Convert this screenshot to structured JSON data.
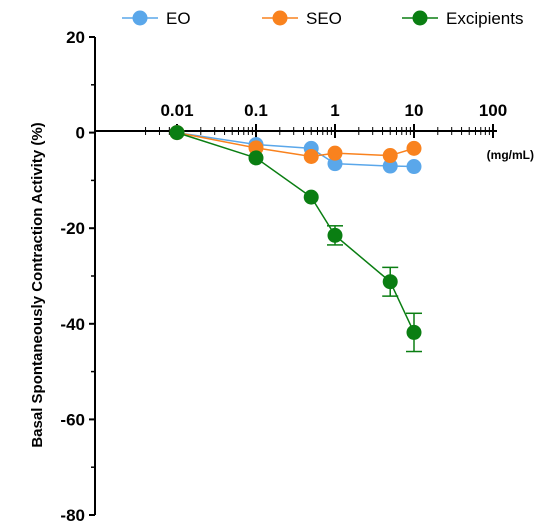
{
  "chart_data": {
    "type": "line",
    "title": "",
    "xlabel": "",
    "x_unit_label": "(mg/mL)",
    "ylabel": "Basal Spontaneously Contraction Activity (%)",
    "x_scale": "log",
    "xlim": [
      0.01,
      100
    ],
    "ylim": [
      -80,
      20
    ],
    "x_ticks": [
      {
        "value": 0.01,
        "label": "0.01"
      },
      {
        "value": 0.1,
        "label": "0.1"
      },
      {
        "value": 1,
        "label": "1"
      },
      {
        "value": 10,
        "label": "10"
      },
      {
        "value": 100,
        "label": "100"
      }
    ],
    "y_ticks": [
      {
        "value": 20,
        "label": "20"
      },
      {
        "value": 0,
        "label": "0"
      },
      {
        "value": -20,
        "label": "-20"
      },
      {
        "value": -40,
        "label": "-40"
      },
      {
        "value": -60,
        "label": "-60"
      },
      {
        "value": -80,
        "label": "-80"
      }
    ],
    "legend_position": "top",
    "series": [
      {
        "name": "EO",
        "color": "#5aa7ea",
        "x": [
          0.01,
          0.1,
          0.5,
          1,
          5,
          10
        ],
        "y": [
          0,
          -2.5,
          -3.3,
          -6.5,
          -7.0,
          -7.1
        ],
        "error": [
          0,
          0,
          0,
          0,
          0,
          0
        ]
      },
      {
        "name": "SEO",
        "color": "#f9821e",
        "x": [
          0.01,
          0.1,
          0.5,
          1,
          5,
          10
        ],
        "y": [
          0,
          -3.2,
          -5.0,
          -4.3,
          -4.8,
          -3.3
        ],
        "error": [
          0,
          0,
          0,
          0,
          0,
          0
        ]
      },
      {
        "name": "Excipients",
        "color": "#0a7e12",
        "x": [
          0.01,
          0.1,
          0.5,
          1,
          5,
          10
        ],
        "y": [
          0,
          -5.3,
          -13.5,
          -21.5,
          -31.2,
          -41.8
        ],
        "error": [
          0,
          0,
          0,
          2.0,
          3.0,
          4.0
        ]
      }
    ]
  }
}
